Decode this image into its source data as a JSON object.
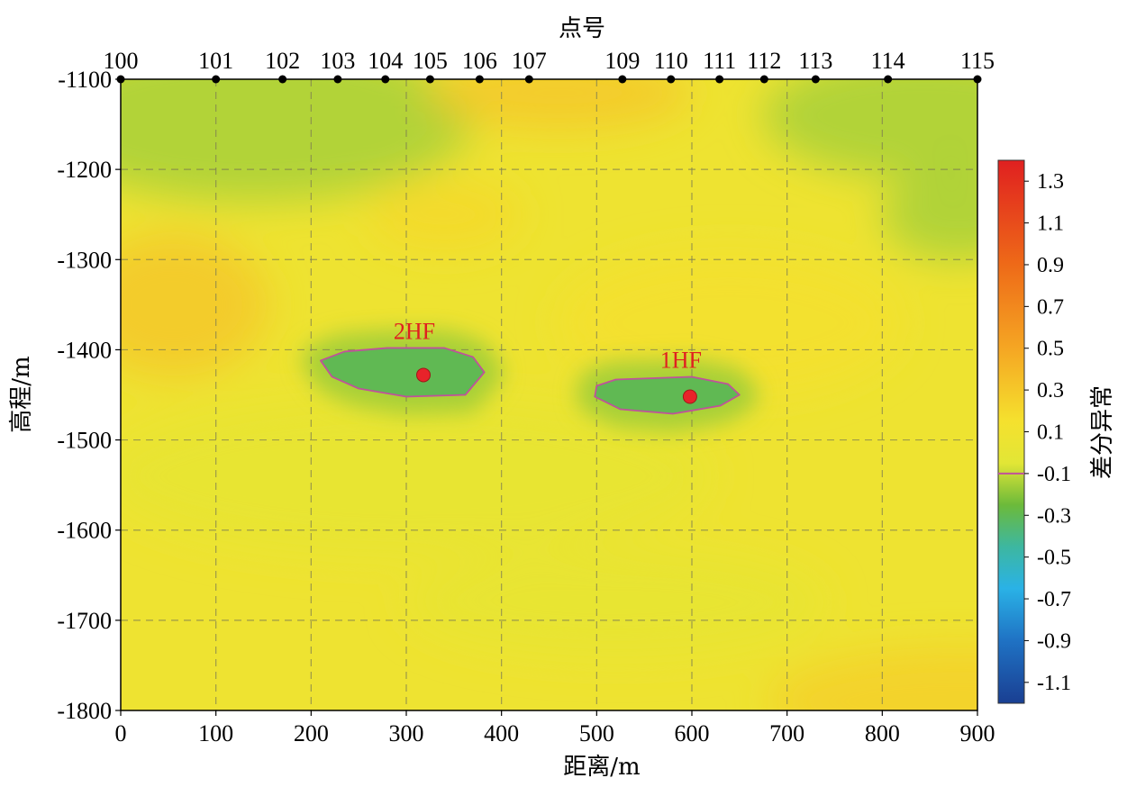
{
  "chart_data": {
    "type": "heatmap",
    "title": "",
    "top_axis_label": "点号",
    "xlabel": "距离/m",
    "ylabel": "高程/m",
    "colorbar_label": "差分异常",
    "xlim": [
      0,
      900
    ],
    "ylim": [
      -1800,
      -1100
    ],
    "x_ticks": [
      0,
      100,
      200,
      300,
      400,
      500,
      600,
      700,
      800,
      900
    ],
    "y_ticks": [
      -1100,
      -1200,
      -1300,
      -1400,
      -1500,
      -1600,
      -1700,
      -1800
    ],
    "grid": "dashed",
    "stations": [
      {
        "label": "100",
        "x": 0
      },
      {
        "label": "101",
        "x": 100
      },
      {
        "label": "102",
        "x": 170
      },
      {
        "label": "103",
        "x": 228
      },
      {
        "label": "104",
        "x": 278
      },
      {
        "label": "105",
        "x": 325
      },
      {
        "label": "106",
        "x": 377
      },
      {
        "label": "107",
        "x": 429
      },
      {
        "label": "109",
        "x": 527
      },
      {
        "label": "110",
        "x": 578
      },
      {
        "label": "111",
        "x": 629
      },
      {
        "label": "112",
        "x": 676
      },
      {
        "label": "113",
        "x": 730
      },
      {
        "label": "114",
        "x": 806
      },
      {
        "label": "115",
        "x": 900
      }
    ],
    "colorbar": {
      "range": [
        -1.2,
        1.4
      ],
      "ticks": [
        "1.3",
        "1.1",
        "0.9",
        "0.7",
        "0.5",
        "0.3",
        "0.1",
        "-0.1",
        "-0.3",
        "-0.5",
        "-0.7",
        "-0.9",
        "-1.1"
      ],
      "contour_level": -0.1,
      "stops": [
        {
          "v": 1.4,
          "color": "#e02020"
        },
        {
          "v": 0.9,
          "color": "#ee6a18"
        },
        {
          "v": 0.5,
          "color": "#f5a623"
        },
        {
          "v": 0.15,
          "color": "#f5e12e"
        },
        {
          "v": -0.05,
          "color": "#e2e636"
        },
        {
          "v": -0.25,
          "color": "#6cba3a"
        },
        {
          "v": -0.45,
          "color": "#3db7a0"
        },
        {
          "v": -0.65,
          "color": "#2ab2e6"
        },
        {
          "v": -0.9,
          "color": "#1f72c4"
        },
        {
          "v": -1.2,
          "color": "#1a3f92"
        }
      ]
    },
    "background_value": 0.08,
    "anomaly_regions": [
      {
        "cx": 140,
        "cy": -1145,
        "rx": 230,
        "ry": 90,
        "value": -0.15
      },
      {
        "cx": 845,
        "cy": -1140,
        "rx": 170,
        "ry": 70,
        "value": -0.15
      },
      {
        "cx": 880,
        "cy": -1250,
        "rx": 80,
        "ry": 50,
        "value": -0.15
      },
      {
        "cx": 460,
        "cy": -1115,
        "rx": 140,
        "ry": 40,
        "value": 0.3
      },
      {
        "cx": 55,
        "cy": -1350,
        "rx": 100,
        "ry": 80,
        "value": 0.3
      },
      {
        "cx": 340,
        "cy": -1250,
        "rx": 80,
        "ry": 40,
        "value": 0.2
      },
      {
        "cx": 880,
        "cy": -1790,
        "rx": 200,
        "ry": 60,
        "value": 0.25
      },
      {
        "cx": 640,
        "cy": -1370,
        "rx": 180,
        "ry": 80,
        "value": 0.15
      },
      {
        "cx": 300,
        "cy": -1540,
        "rx": 320,
        "ry": 90,
        "value": 0.0
      },
      {
        "cx": 520,
        "cy": -1680,
        "rx": 220,
        "ry": 60,
        "value": 0.0
      }
    ],
    "anomalies": [
      {
        "label": "2HF",
        "center": {
          "x": 318,
          "y": -1428
        },
        "value": -0.35,
        "contour": [
          [
            210,
            -1412
          ],
          [
            235,
            -1402
          ],
          [
            280,
            -1398
          ],
          [
            340,
            -1398
          ],
          [
            370,
            -1408
          ],
          [
            382,
            -1425
          ],
          [
            362,
            -1450
          ],
          [
            300,
            -1452
          ],
          [
            250,
            -1443
          ],
          [
            222,
            -1430
          ],
          [
            210,
            -1412
          ]
        ]
      },
      {
        "label": "1HF",
        "center": {
          "x": 598,
          "y": -1452
        },
        "value": -0.35,
        "contour": [
          [
            500,
            -1440
          ],
          [
            520,
            -1433
          ],
          [
            600,
            -1430
          ],
          [
            638,
            -1438
          ],
          [
            650,
            -1450
          ],
          [
            630,
            -1462
          ],
          [
            580,
            -1471
          ],
          [
            525,
            -1466
          ],
          [
            498,
            -1452
          ],
          [
            500,
            -1440
          ]
        ]
      }
    ]
  }
}
